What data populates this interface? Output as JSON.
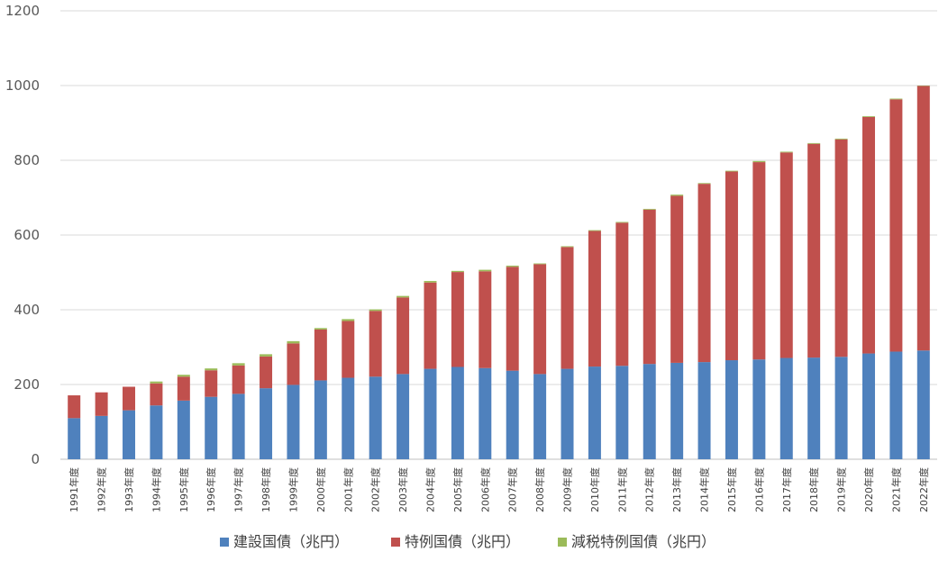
{
  "chart_data": {
    "type": "bar",
    "stacked": true,
    "categories": [
      "1991年度",
      "1992年度",
      "1993年度",
      "1994年度",
      "1995年度",
      "1996年度",
      "1997年度",
      "1998年度",
      "1999年度",
      "2000年度",
      "2001年度",
      "2002年度",
      "2003年度",
      "2004年度",
      "2005年度",
      "2006年度",
      "2007年度",
      "2008年度",
      "2009年度",
      "2010年度",
      "2011年度",
      "2012年度",
      "2013年度",
      "2014年度",
      "2015年度",
      "2016年度",
      "2017年度",
      "2018年度",
      "2019年度",
      "2020年度",
      "2021年度",
      "2022年度"
    ],
    "series": [
      {
        "name": "建設国債（兆円）",
        "color": "#4f81bd",
        "values": [
          110,
          116,
          131,
          144,
          157,
          167,
          175,
          190,
          199,
          211,
          218,
          221,
          228,
          242,
          247,
          244,
          237,
          228,
          242,
          248,
          250,
          255,
          258,
          260,
          265,
          267,
          271,
          272,
          274,
          283,
          288,
          291
        ]
      },
      {
        "name": "特例国債（兆円）",
        "color": "#c0504d",
        "values": [
          61,
          63,
          63,
          59,
          64,
          71,
          76,
          85,
          111,
          136,
          152,
          176,
          205,
          231,
          254,
          259,
          278,
          294,
          326,
          363,
          383,
          413,
          447,
          477,
          505,
          528,
          550,
          572,
          582,
          633,
          675,
          708
        ]
      },
      {
        "name": "減税特例国債（兆円）",
        "color": "#9bbb59",
        "values": [
          0,
          0,
          0,
          5,
          5,
          5,
          6,
          6,
          6,
          4,
          5,
          4,
          4,
          4,
          3,
          4,
          3,
          2,
          2,
          2,
          2,
          2,
          3,
          2,
          2,
          3,
          2,
          2,
          2,
          2,
          2,
          1
        ]
      }
    ],
    "ylim": [
      0,
      1200
    ],
    "yticks": [
      "0",
      "200",
      "400",
      "600",
      "800",
      "1000",
      "1200"
    ],
    "grid": true,
    "legend": "bottom"
  }
}
